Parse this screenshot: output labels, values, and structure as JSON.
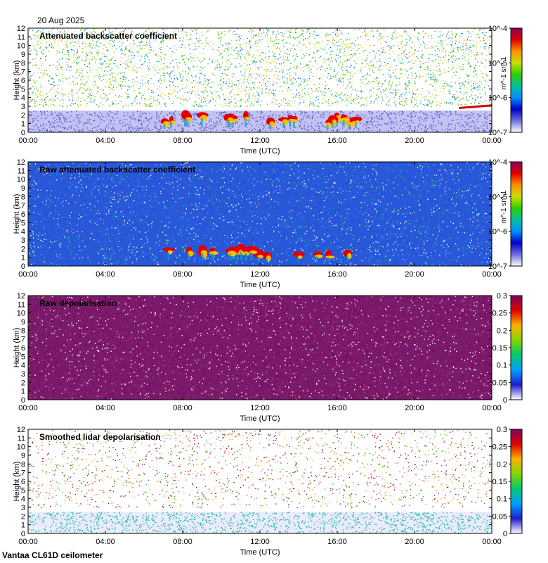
{
  "header": {
    "date": "20 Aug 2025"
  },
  "footer": {
    "instrument": "Vantaa CL61D ceilometer"
  },
  "colors": {
    "frame": "#000000",
    "background_noise": "#c7c7f0",
    "cloud_high": "#cc0033",
    "depol_noise": "#800060"
  },
  "chart_data": [
    {
      "type": "heatmap",
      "title": "Attenuated backscatter coefficient",
      "xlabel": "Time (UTC)",
      "ylabel": "Height (km)",
      "x_ticks": [
        "00:00",
        "04:00",
        "08:00",
        "12:00",
        "16:00",
        "20:00",
        "00:00"
      ],
      "y_ticks": [
        0,
        1,
        2,
        3,
        4,
        5,
        6,
        7,
        8,
        9,
        10,
        11,
        12
      ],
      "ylim": [
        0,
        12
      ],
      "colorbar": {
        "scale": "log",
        "ticks": [
          "10^-7",
          "10^-6",
          "10^-5",
          "10^-4"
        ],
        "label": "m^-1 sr^-1"
      },
      "features": {
        "boundary_layer_top_km": 2.5,
        "low_cloud_window_utc": [
          "07:00",
          "17:00"
        ],
        "low_cloud_base_km": 1.2,
        "late_cloud_km": 2.8
      }
    },
    {
      "type": "heatmap",
      "title": "Raw attenuated backscatter coefficient",
      "xlabel": "Time (UTC)",
      "ylabel": "Height (km)",
      "x_ticks": [
        "00:00",
        "04:00",
        "08:00",
        "12:00",
        "16:00",
        "20:00",
        "00:00"
      ],
      "y_ticks": [
        0,
        1,
        2,
        3,
        4,
        5,
        6,
        7,
        8,
        9,
        10,
        11,
        12
      ],
      "ylim": [
        0,
        12
      ],
      "colorbar": {
        "scale": "log",
        "ticks": [
          "10^-7",
          "10^-6",
          "10^-5",
          "10^-4"
        ],
        "label": "m^-1 sr^-1"
      },
      "features": {
        "noise_fill": true,
        "low_cloud_window_utc": [
          "07:00",
          "17:00"
        ],
        "low_cloud_base_km": 1.2
      }
    },
    {
      "type": "heatmap",
      "title": "Raw depolarisation",
      "xlabel": "Time (UTC)",
      "ylabel": "Height (km)",
      "x_ticks": [
        "00:00",
        "04:00",
        "08:00",
        "12:00",
        "16:00",
        "20:00",
        "00:00"
      ],
      "y_ticks": [
        0,
        1,
        2,
        3,
        4,
        5,
        6,
        7,
        8,
        9,
        10,
        11,
        12
      ],
      "ylim": [
        0,
        12
      ],
      "colorbar": {
        "scale": "linear",
        "range": [
          0,
          0.3
        ],
        "ticks": [
          "0",
          "0.05",
          "0.1",
          "0.15",
          "0.2",
          "0.25",
          "0.3"
        ]
      },
      "features": {
        "noise_fill": true
      }
    },
    {
      "type": "heatmap",
      "title": "Smoothed lidar depolarisation",
      "xlabel": "Time (UTC)",
      "ylabel": "Height (km)",
      "x_ticks": [
        "00:00",
        "04:00",
        "08:00",
        "12:00",
        "16:00",
        "20:00",
        "00:00"
      ],
      "y_ticks": [
        0,
        1,
        2,
        3,
        4,
        5,
        6,
        7,
        8,
        9,
        10,
        11,
        12
      ],
      "ylim": [
        0,
        12
      ],
      "colorbar": {
        "scale": "linear",
        "range": [
          0,
          0.3
        ],
        "ticks": [
          "0",
          "0.05",
          "0.1",
          "0.15",
          "0.2",
          "0.25",
          "0.3"
        ]
      },
      "features": {
        "boundary_layer_top_km": 2.5
      }
    }
  ]
}
